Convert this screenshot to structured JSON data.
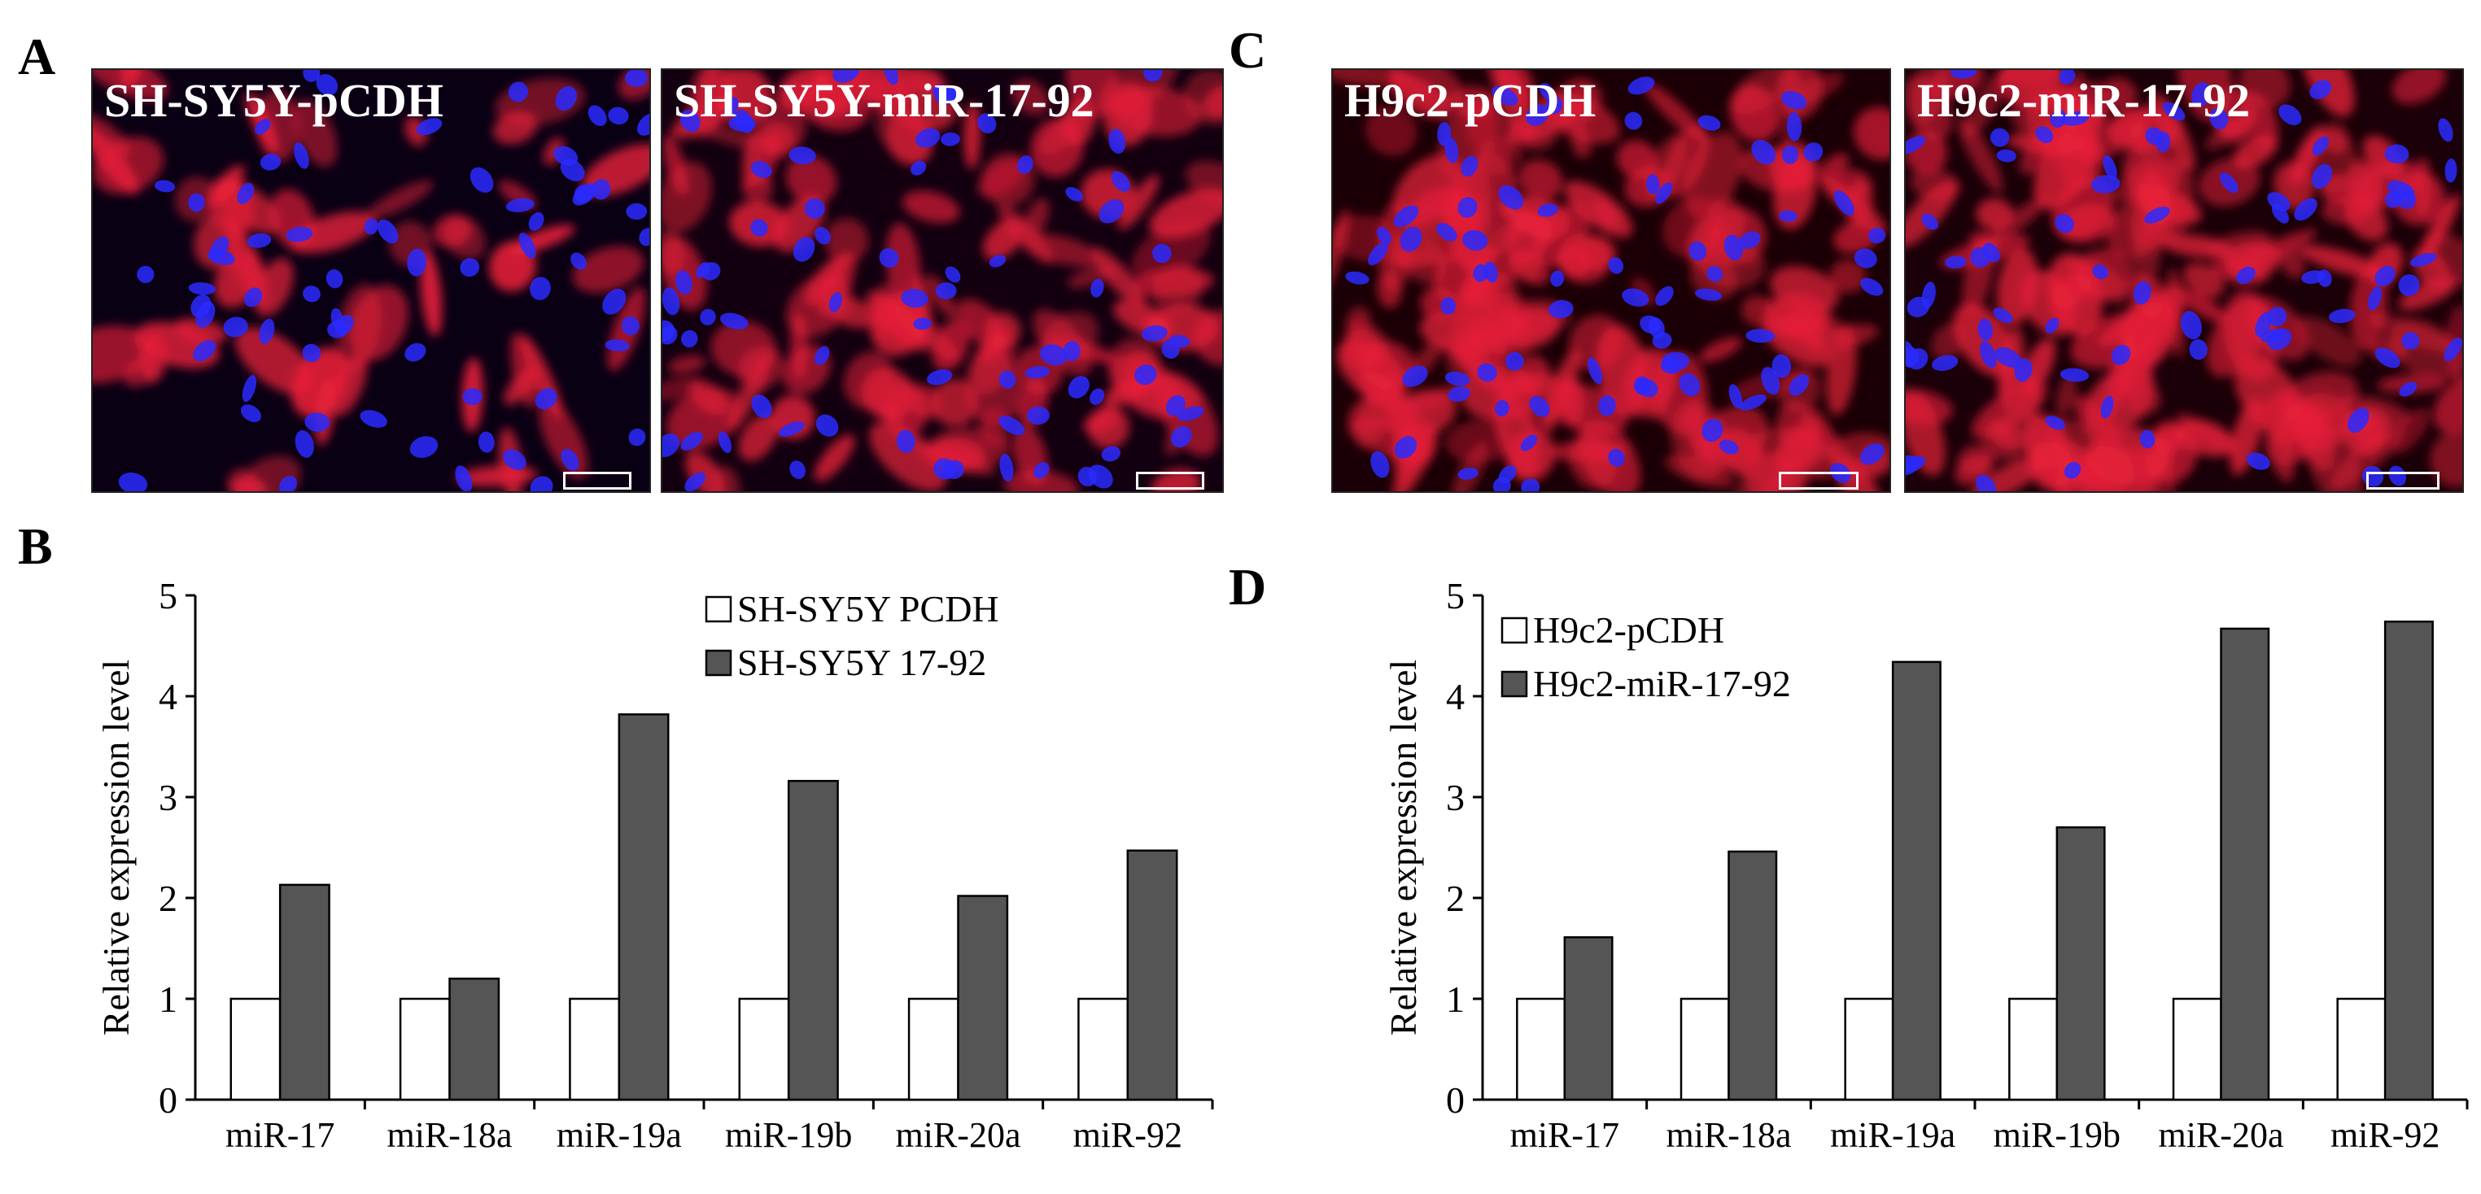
{
  "panels": {
    "A": {
      "letter": "A",
      "images": [
        {
          "label": "SH-SY5Y-pCDH",
          "stain": "red-blue fluorescence"
        },
        {
          "label": "SH-SY5Y-miR-17-92",
          "stain": "red-blue fluorescence"
        }
      ]
    },
    "C": {
      "letter": "C",
      "images": [
        {
          "label": "H9c2-pCDH",
          "stain": "red-blue fluorescence"
        },
        {
          "label": "H9c2-miR-17-92",
          "stain": "red-blue fluorescence"
        }
      ]
    },
    "B": {
      "letter": "B"
    },
    "D": {
      "letter": "D"
    }
  },
  "colors": {
    "bar_control": "#ffffff",
    "bar_treated": "#555555",
    "fluor_red": "#e8203a",
    "fluor_blue": "#2a2aff",
    "background_dark": "#0a0014"
  },
  "chart_data": [
    {
      "panel": "B",
      "type": "bar",
      "categories": [
        "miR-17",
        "miR-18a",
        "miR-19a",
        "miR-19b",
        "miR-20a",
        "miR-92"
      ],
      "series": [
        {
          "name": "SH-SY5Y PCDH",
          "values": [
            1,
            1,
            1,
            1,
            1,
            1
          ],
          "color": "#ffffff"
        },
        {
          "name": "SH-SY5Y 17-92",
          "values": [
            2.13,
            1.2,
            3.82,
            3.16,
            2.02,
            2.47
          ],
          "color": "#555555"
        }
      ],
      "ylabel": "Relative expression level",
      "xlabel": "",
      "ylim": [
        0,
        5
      ],
      "yticks": [
        "0",
        "1",
        "2",
        "3",
        "4",
        "5"
      ],
      "legend": "top-right",
      "grid": false
    },
    {
      "panel": "D",
      "type": "bar",
      "categories": [
        "miR-17",
        "miR-18a",
        "miR-19a",
        "miR-19b",
        "miR-20a",
        "miR-92"
      ],
      "series": [
        {
          "name": "H9c2-pCDH",
          "values": [
            1,
            1,
            1,
            1,
            1,
            1
          ],
          "color": "#ffffff"
        },
        {
          "name": "H9c2-miR-17-92",
          "values": [
            1.61,
            2.46,
            4.34,
            2.7,
            4.67,
            4.74
          ],
          "color": "#555555"
        }
      ],
      "ylabel": "Relative expression level",
      "xlabel": "",
      "ylim": [
        0,
        5
      ],
      "yticks": [
        "0",
        "1",
        "2",
        "3",
        "4",
        "5"
      ],
      "legend": "top-left",
      "grid": false
    }
  ]
}
